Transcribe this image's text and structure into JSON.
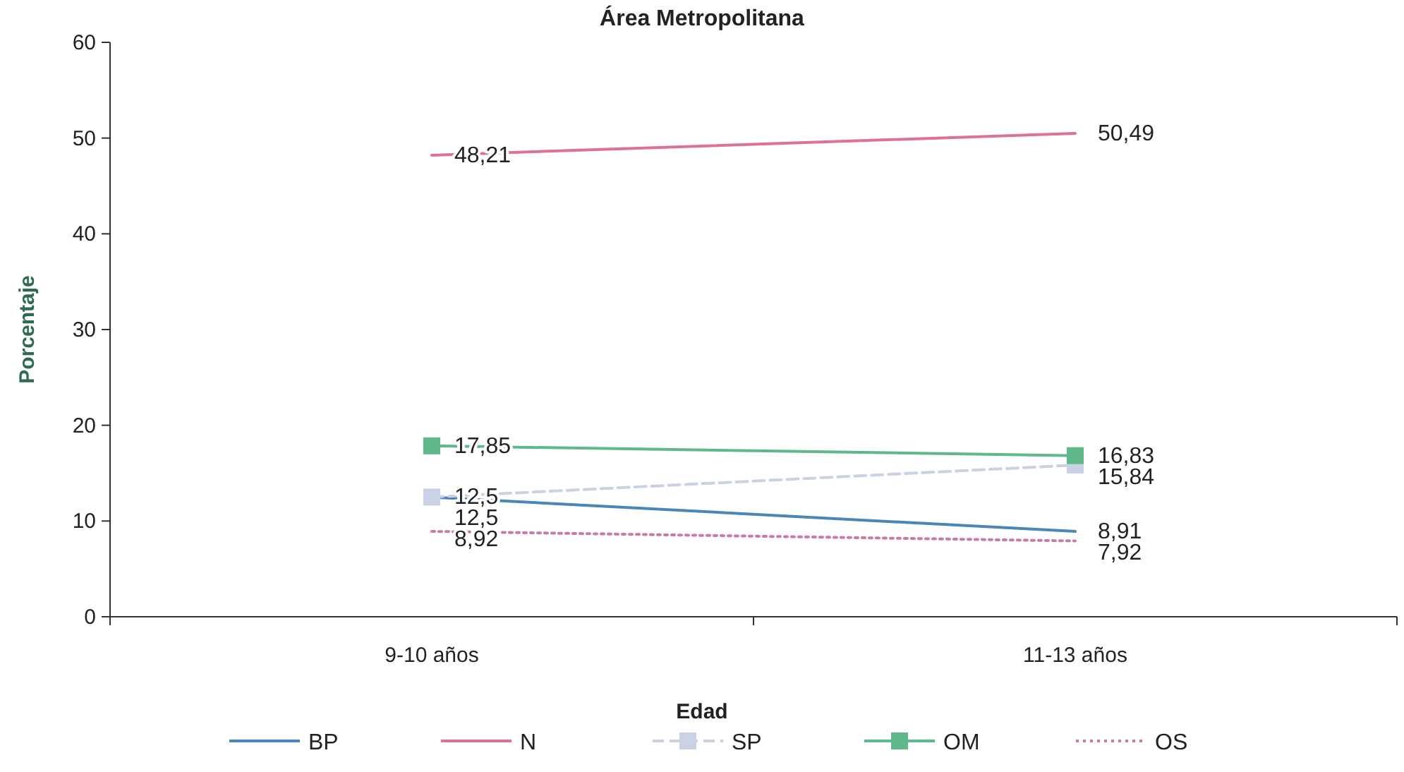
{
  "chart_data": {
    "type": "line",
    "title": "Área Metropolitana",
    "xlabel": "Edad",
    "ylabel": "Porcentaje",
    "categories": [
      "9-10 años",
      "11-13 años"
    ],
    "series": [
      {
        "name": "BP",
        "color": "#4a86b8",
        "values": [
          12.5,
          8.91
        ],
        "value_labels": [
          "12,5",
          "8,91"
        ],
        "marker": "none",
        "line_style": "solid"
      },
      {
        "name": "N",
        "color": "#e0709a",
        "values": [
          48.21,
          50.49
        ],
        "value_labels": [
          "48,21",
          "50,49"
        ],
        "marker": "none",
        "line_style": "solid"
      },
      {
        "name": "SP",
        "color": "#c8d2e4",
        "values": [
          12.5,
          15.84
        ],
        "value_labels": [
          "12,5",
          "15,84"
        ],
        "marker": "square",
        "line_style": "dashed"
      },
      {
        "name": "OM",
        "color": "#5fb88a",
        "values": [
          17.85,
          16.83
        ],
        "value_labels": [
          "17,85",
          "16,83"
        ],
        "marker": "square",
        "line_style": "solid"
      },
      {
        "name": "OS",
        "color": "#c87aa8",
        "values": [
          8.92,
          7.92
        ],
        "value_labels": [
          "8,92",
          "7,92"
        ],
        "marker": "none",
        "line_style": "dotted"
      }
    ],
    "ylim": [
      0,
      60
    ],
    "yticks": [
      0,
      10,
      20,
      30,
      40,
      50,
      60
    ],
    "grid": false,
    "legend": "bottom"
  }
}
